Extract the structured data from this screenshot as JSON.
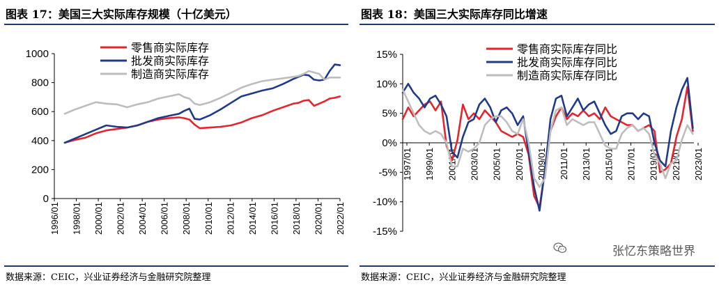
{
  "left": {
    "title": "图表 17：美国三大实际库存规模（十亿美元）",
    "source": "数据来源：CEIC，兴业证券经济与金融研究院整理"
  },
  "right": {
    "title": "图表 18：美国三大实际库存同比增速",
    "source": "数据来源：CEIC，兴业证券经济与金融研究院整理"
  },
  "watermark": "张忆东策略世界",
  "chart_data": [
    {
      "type": "line",
      "title": "美国三大实际库存规模（十亿美元）",
      "xlabel": "",
      "ylabel": "",
      "ylim": [
        0,
        1000
      ],
      "yticks": [
        "0",
        "200",
        "400",
        "600",
        "800",
        "1000"
      ],
      "xticks": [
        "1996/01",
        "1998/01",
        "2000/01",
        "2002/01",
        "2004/01",
        "2006/01",
        "2008/01",
        "2010/01",
        "2012/01",
        "2014/01",
        "2016/01",
        "2018/01",
        "2020/01",
        "2022/01"
      ],
      "xrange": [
        1996.0,
        2023.5
      ],
      "grid": false,
      "legend_position": "top-center",
      "x": [
        1997.0,
        1998.0,
        1999.0,
        2000.0,
        2001.0,
        2002.0,
        2003.0,
        2004.0,
        2005.0,
        2006.0,
        2007.0,
        2008.0,
        2008.5,
        2009.0,
        2009.5,
        2010.0,
        2011.0,
        2012.0,
        2013.0,
        2014.0,
        2015.0,
        2016.0,
        2017.0,
        2018.0,
        2019.0,
        2019.5,
        2020.0,
        2020.5,
        2021.0,
        2021.5,
        2022.0,
        2022.5,
        2023.0,
        2023.5
      ],
      "series": [
        {
          "name": "零售商实际库存",
          "color": "#e8242b",
          "values": [
            385,
            405,
            420,
            450,
            470,
            480,
            490,
            505,
            530,
            545,
            555,
            560,
            555,
            545,
            510,
            485,
            490,
            495,
            505,
            525,
            555,
            575,
            605,
            630,
            655,
            660,
            675,
            680,
            640,
            655,
            670,
            690,
            695,
            705
          ]
        },
        {
          "name": "批发商实际库存",
          "color": "#1f3a8a",
          "values": [
            385,
            415,
            445,
            475,
            505,
            495,
            490,
            505,
            530,
            555,
            570,
            585,
            605,
            620,
            550,
            545,
            575,
            615,
            660,
            705,
            725,
            745,
            760,
            790,
            825,
            840,
            855,
            850,
            820,
            815,
            820,
            880,
            925,
            920
          ]
        },
        {
          "name": "制造商实际库存",
          "color": "#bdbdbd",
          "values": [
            585,
            615,
            640,
            665,
            655,
            650,
            630,
            650,
            665,
            690,
            705,
            720,
            700,
            690,
            655,
            645,
            665,
            695,
            730,
            765,
            790,
            810,
            820,
            830,
            840,
            845,
            860,
            880,
            870,
            860,
            820,
            835,
            835,
            835
          ]
        }
      ]
    },
    {
      "type": "line",
      "title": "美国三大实际库存同比增速",
      "xlabel": "",
      "ylabel": "",
      "ylim": [
        -15,
        15
      ],
      "yticks": [
        "-15%",
        "-10%",
        "-5%",
        "0%",
        "5%",
        "10%",
        "15%"
      ],
      "xticks": [
        "1997/01",
        "1999/01",
        "2001/01",
        "2003/01",
        "2005/01",
        "2007/01",
        "2009/01",
        "2011/01",
        "2013/01",
        "2015/01",
        "2017/01",
        "2019/01",
        "2021/01",
        "2023/01"
      ],
      "xrange": [
        1997.0,
        2023.6
      ],
      "grid": false,
      "legend_position": "top-center",
      "x": [
        1997.0,
        1997.5,
        1998.0,
        1998.5,
        1999.0,
        1999.5,
        2000.0,
        2000.5,
        2001.0,
        2001.5,
        2002.0,
        2002.5,
        2003.0,
        2003.5,
        2004.0,
        2004.5,
        2005.0,
        2005.5,
        2006.0,
        2006.5,
        2007.0,
        2007.5,
        2008.0,
        2008.5,
        2009.0,
        2009.5,
        2010.0,
        2010.5,
        2011.0,
        2011.5,
        2012.0,
        2012.5,
        2013.0,
        2013.5,
        2014.0,
        2014.5,
        2015.0,
        2015.5,
        2016.0,
        2016.5,
        2017.0,
        2017.5,
        2018.0,
        2018.5,
        2019.0,
        2019.5,
        2020.0,
        2020.5,
        2021.0,
        2021.5,
        2022.0,
        2022.5,
        2023.0,
        2023.5
      ],
      "series": [
        {
          "name": "零售商实际库存同比",
          "color": "#e8242b",
          "values": [
            4.0,
            6.0,
            4.5,
            5.5,
            6.5,
            7.0,
            5.5,
            7.0,
            -0.5,
            -3.0,
            0.5,
            6.5,
            4.0,
            5.0,
            4.0,
            5.5,
            4.5,
            3.5,
            2.0,
            1.5,
            1.0,
            1.5,
            1.0,
            -2.0,
            -9.0,
            -11.0,
            -4.5,
            2.0,
            4.5,
            6.0,
            4.0,
            5.0,
            4.5,
            5.5,
            4.5,
            5.0,
            4.0,
            6.0,
            4.5,
            4.0,
            3.5,
            3.0,
            3.0,
            2.0,
            2.5,
            3.0,
            2.0,
            -5.0,
            -4.5,
            -3.5,
            1.0,
            4.0,
            9.5,
            2.0
          ]
        },
        {
          "name": "批发商实际库存同比",
          "color": "#1f3a8a",
          "values": [
            8.5,
            10.0,
            8.5,
            7.5,
            6.0,
            7.5,
            8.0,
            6.5,
            4.5,
            -1.5,
            -2.5,
            1.0,
            3.5,
            4.0,
            6.5,
            7.5,
            6.0,
            3.5,
            5.5,
            6.0,
            5.0,
            3.0,
            4.5,
            -1.5,
            -7.5,
            -11.5,
            -4.5,
            4.0,
            7.5,
            8.0,
            4.5,
            6.0,
            7.5,
            5.5,
            6.5,
            7.0,
            5.0,
            3.0,
            1.5,
            2.0,
            4.5,
            5.0,
            5.0,
            4.0,
            5.0,
            4.5,
            0.0,
            -3.0,
            -4.0,
            2.0,
            6.0,
            9.0,
            11.0,
            2.5
          ]
        },
        {
          "name": "制造商实际库存同比",
          "color": "#bdbdbd",
          "values": [
            9.0,
            7.0,
            5.0,
            3.0,
            2.0,
            1.5,
            2.0,
            1.5,
            0.0,
            -4.0,
            -4.0,
            -1.0,
            -1.5,
            -1.0,
            0.0,
            3.0,
            4.0,
            4.5,
            4.5,
            3.5,
            2.0,
            1.5,
            4.0,
            0.0,
            -6.0,
            -7.5,
            -6.0,
            2.0,
            5.5,
            6.0,
            3.0,
            4.0,
            3.5,
            3.0,
            3.5,
            3.5,
            1.5,
            -0.5,
            -1.0,
            -1.0,
            1.5,
            2.5,
            3.0,
            2.0,
            2.5,
            1.5,
            -2.0,
            -3.5,
            -6.0,
            -3.5,
            -3.0,
            0.5,
            3.0,
            1.5
          ]
        }
      ]
    }
  ]
}
